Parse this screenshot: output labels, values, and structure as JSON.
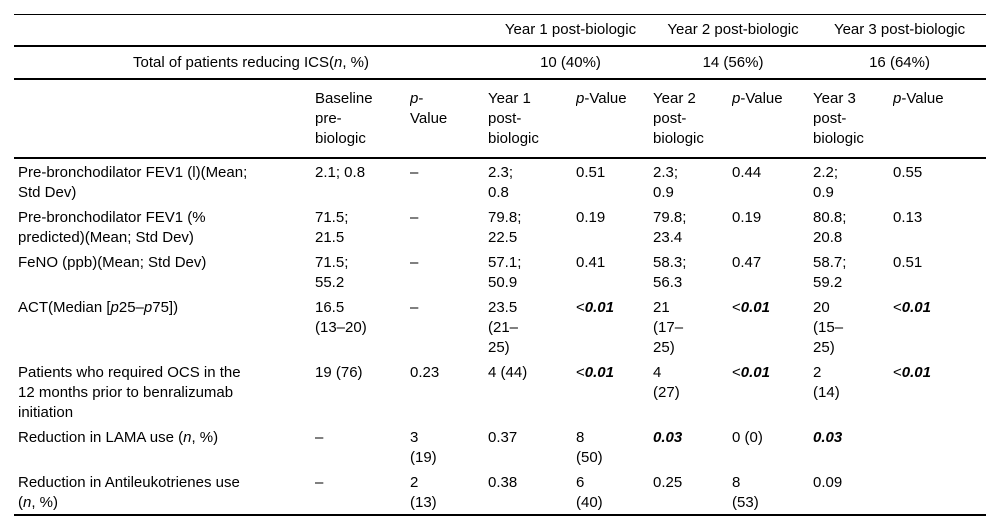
{
  "table": {
    "top_header": {
      "year_groups": [
        "Year 1 post-biologic",
        "Year 2 post-biologic",
        "Year 3 post-biologic"
      ]
    },
    "totals_row": {
      "label": "Total of patients reducing ICS(<i>n</i>, %)",
      "values": [
        "10 (40%)",
        "14 (56%)",
        "16 (64%)"
      ]
    },
    "col_headers": [
      "Baseline\npre-\nbiologic",
      "<i>p</i>-\nValue",
      "Year 1\npost-\nbiologic",
      "<i>p</i>-Value",
      "Year 2\npost-\nbiologic",
      "<i>p</i>-Value",
      "Year 3\npost-\nbiologic",
      "<i>p</i>-Value"
    ],
    "rows": [
      {
        "label": "Pre-bronchodilator FEV1 (l)(Mean;\nStd Dev)",
        "cells": [
          "2.1; 0.8",
          "–",
          "2.3;\n0.8",
          "0.51",
          "2.3;\n0.9",
          "0.44",
          "2.2;\n0.9",
          "0.55"
        ]
      },
      {
        "label": "Pre-bronchodilator FEV1 (%\npredicted)(Mean; Std Dev)",
        "cells": [
          "71.5;\n21.5",
          "–",
          "79.8;\n22.5",
          "0.19",
          "79.8;\n23.4",
          "0.19",
          "80.8;\n20.8",
          "0.13"
        ]
      },
      {
        "label": "FeNO (ppb)(Mean; Std Dev)",
        "cells": [
          "71.5;\n55.2",
          "–",
          "57.1;\n50.9",
          "0.41",
          "58.3;\n56.3",
          "0.47",
          "58.7;\n59.2",
          "0.51"
        ]
      },
      {
        "label": "ACT(Median [<i>p</i>25–<i>p</i>75])",
        "cells": [
          "16.5\n(13–20)",
          "–",
          "23.5\n(21–\n25)",
          "&lt;<b><i>0.01</i></b>",
          "21\n(17–\n25)",
          "&lt;<b><i>0.01</i></b>",
          "20\n(15–\n25)",
          "&lt;<b><i>0.01</i></b>"
        ]
      },
      {
        "label": "Patients who required OCS in the\n12 months prior to benralizumab\ninitiation",
        "cells": [
          "19 (76)",
          "0.23",
          "4 (44)",
          "&lt;<b><i>0.01</i></b>",
          "4\n(27)",
          "&lt;<b><i>0.01</i></b>",
          "2\n(14)",
          "&lt;<b><i>0.01</i></b>"
        ]
      },
      {
        "label": "Reduction in LAMA use (<i>n</i>, %)",
        "cells": [
          "–",
          "3\n(19)",
          "0.37",
          "8\n(50)",
          "<b><i>0.03</i></b>",
          "0 (0)",
          "<b><i>0.03</i></b>",
          ""
        ]
      },
      {
        "label": "Reduction in Antileukotrienes use\n(<i>n</i>, %)",
        "cells": [
          "–",
          "2\n(13)",
          "0.38",
          "6\n(40)",
          "0.25",
          "8\n(53)",
          "0.09",
          ""
        ]
      }
    ]
  }
}
